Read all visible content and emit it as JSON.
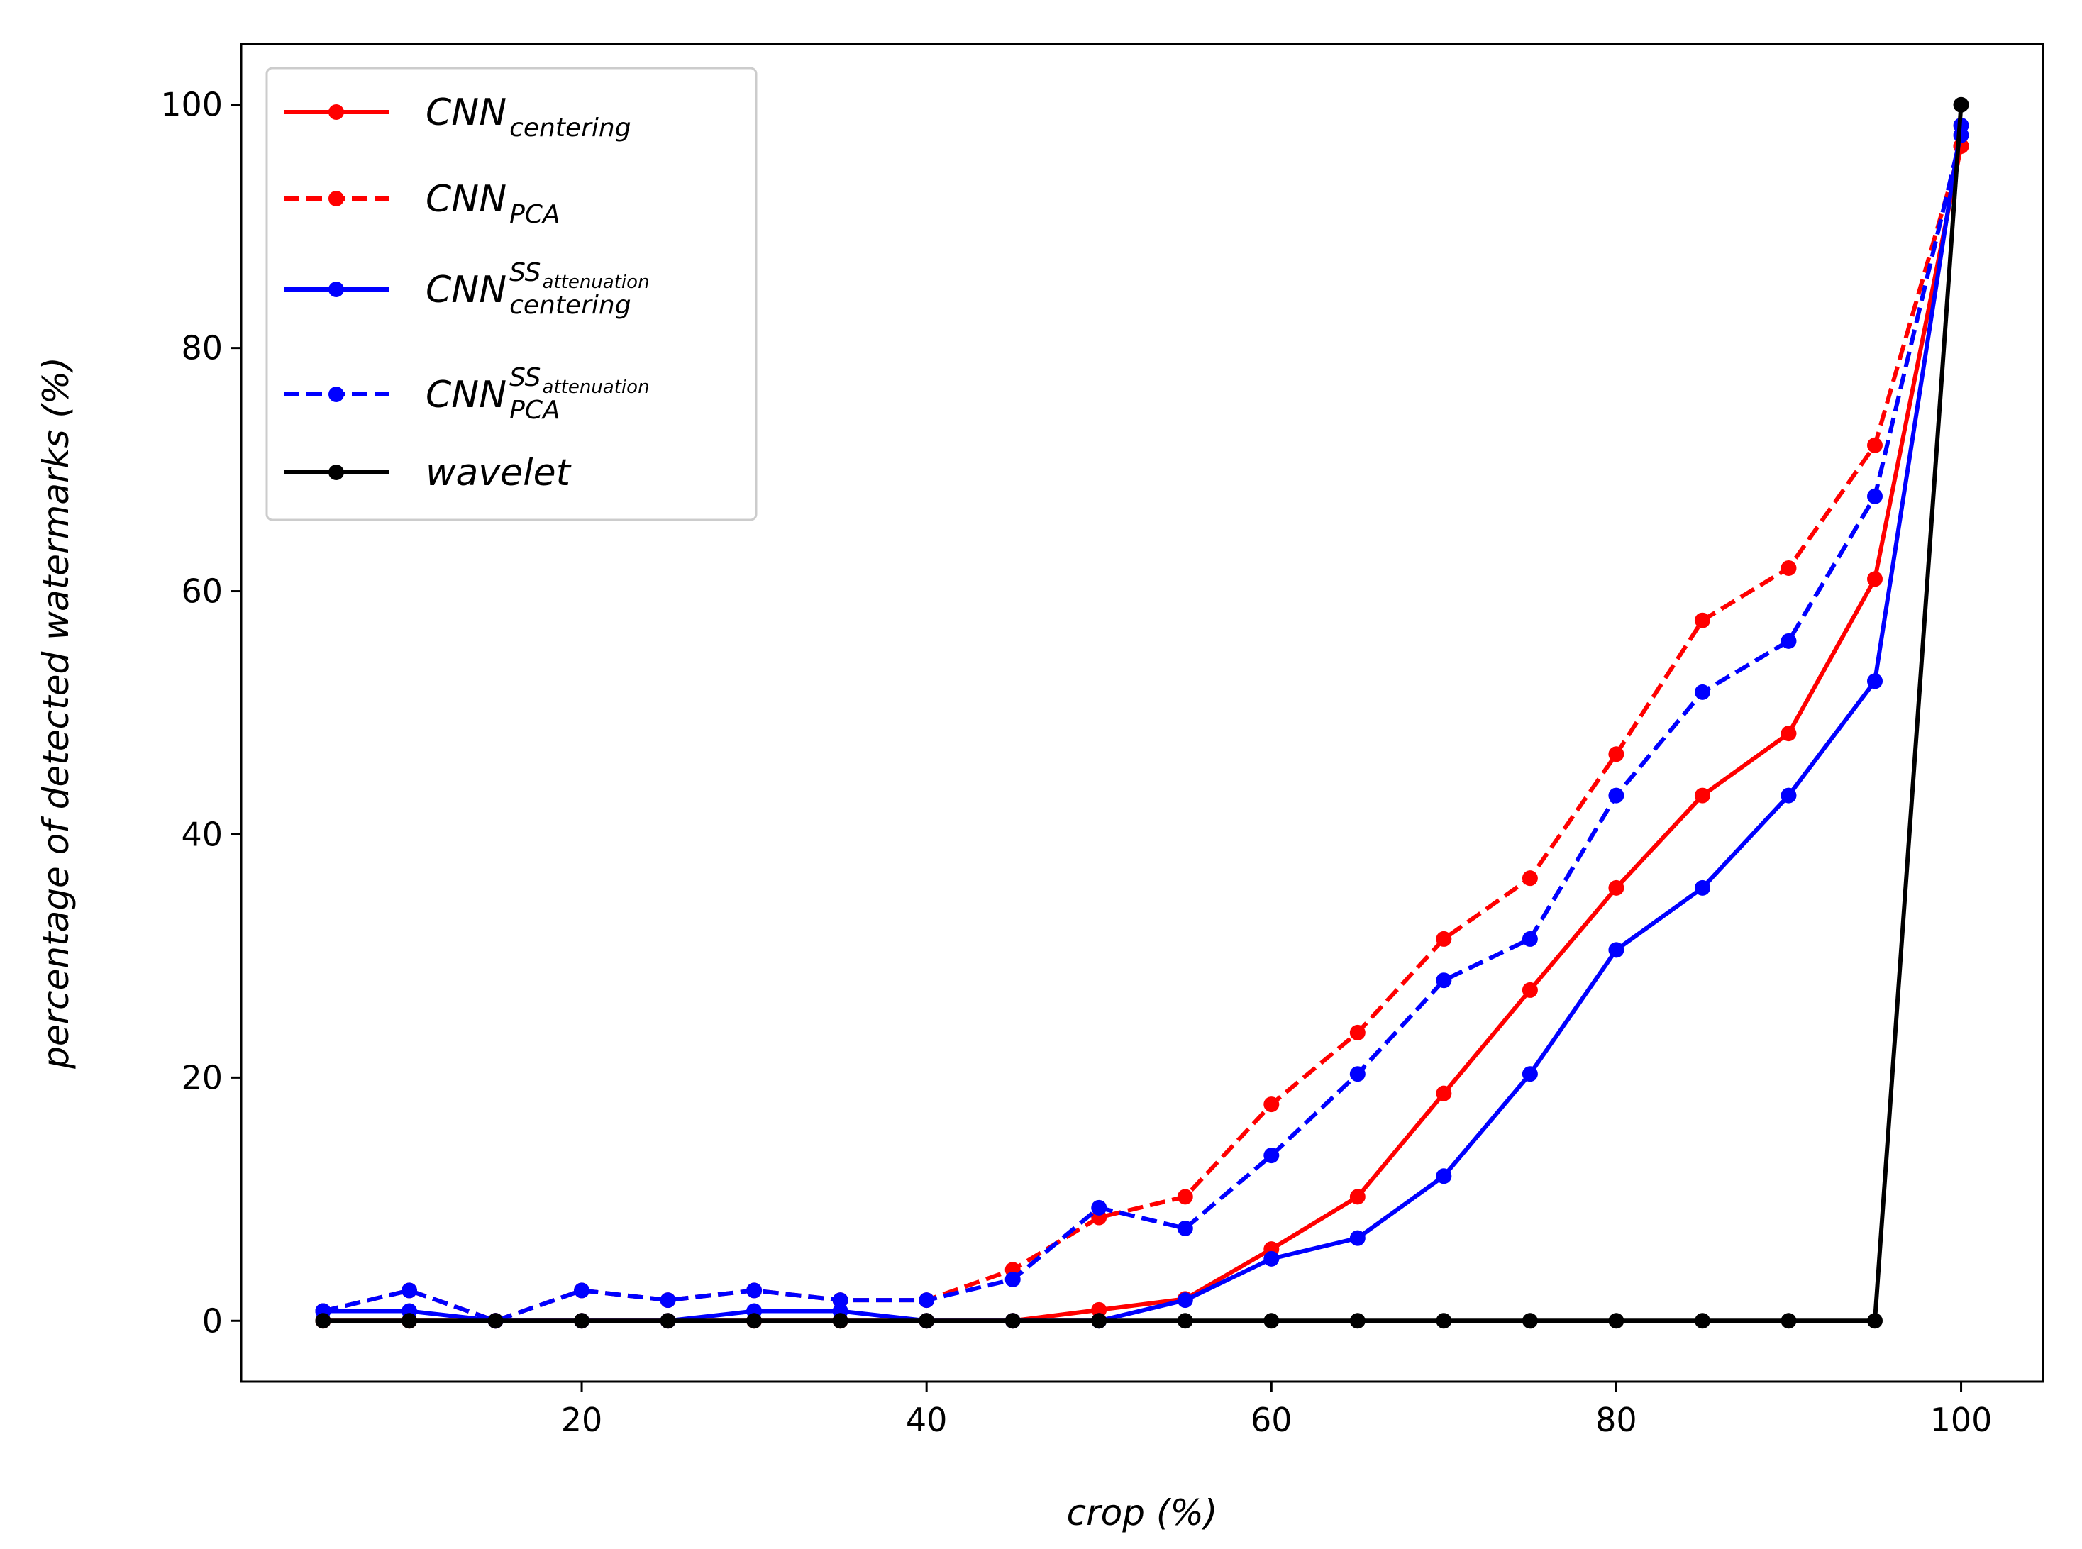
{
  "chart_data": {
    "type": "line",
    "title": "",
    "xlabel": "crop (%)",
    "ylabel": "percentage of detected watermarks (%)",
    "xlim": [
      0.25,
      104.75
    ],
    "ylim": [
      -5,
      105
    ],
    "xticks": [
      20,
      40,
      60,
      80,
      100
    ],
    "yticks": [
      0,
      20,
      40,
      60,
      80,
      100
    ],
    "x": [
      5,
      10,
      15,
      20,
      25,
      30,
      35,
      40,
      45,
      50,
      55,
      60,
      65,
      70,
      75,
      80,
      85,
      90,
      95,
      100
    ],
    "legend_position": "upper-left",
    "series": [
      {
        "name": "CNN_centering",
        "label_base": "CNN",
        "label_sub": "centering",
        "label_sup": "",
        "color": "#ff0000",
        "style": "solid",
        "values": [
          0,
          0,
          0,
          0,
          0,
          0,
          0,
          0,
          0,
          0.9,
          1.8,
          5.9,
          10.2,
          18.7,
          27.2,
          35.6,
          43.2,
          48.3,
          61.0,
          96.6
        ]
      },
      {
        "name": "CNN_PCA",
        "label_base": "CNN",
        "label_sub": "PCA",
        "label_sup": "",
        "color": "#ff0000",
        "style": "dashed",
        "values": [
          0.8,
          2.5,
          0,
          2.5,
          1.7,
          2.5,
          1.7,
          1.7,
          4.2,
          8.5,
          10.2,
          17.8,
          23.7,
          31.4,
          36.4,
          46.6,
          57.6,
          61.9,
          72.0,
          96.6
        ]
      },
      {
        "name": "CNN_centering^SS_attenuation",
        "label_base": "CNN",
        "label_sub": "centering",
        "label_sup": "SS",
        "label_sup_sub": "attenuation",
        "color": "#0000ff",
        "style": "solid",
        "values": [
          0.8,
          0.8,
          0,
          0,
          0,
          0.8,
          0.8,
          0,
          0,
          0,
          1.7,
          5.1,
          6.8,
          11.9,
          20.3,
          30.5,
          35.6,
          43.2,
          52.6,
          98.3
        ]
      },
      {
        "name": "CNN_PCA^SS_attenuation",
        "label_base": "CNN",
        "label_sub": "PCA",
        "label_sup": "SS",
        "label_sup_sub": "attenuation",
        "color": "#0000ff",
        "style": "dashed",
        "values": [
          0.8,
          2.5,
          0,
          2.5,
          1.7,
          2.5,
          1.7,
          1.7,
          3.4,
          9.3,
          7.6,
          13.6,
          20.3,
          28.0,
          31.4,
          43.2,
          51.7,
          55.9,
          67.8,
          97.5
        ]
      },
      {
        "name": "wavelet",
        "label_base": "wavelet",
        "label_sub": "",
        "label_sup": "",
        "color": "#000000",
        "style": "solid",
        "values": [
          0,
          0,
          0,
          0,
          0,
          0,
          0,
          0,
          0,
          0,
          0,
          0,
          0,
          0,
          0,
          0,
          0,
          0,
          0,
          100
        ]
      }
    ]
  }
}
